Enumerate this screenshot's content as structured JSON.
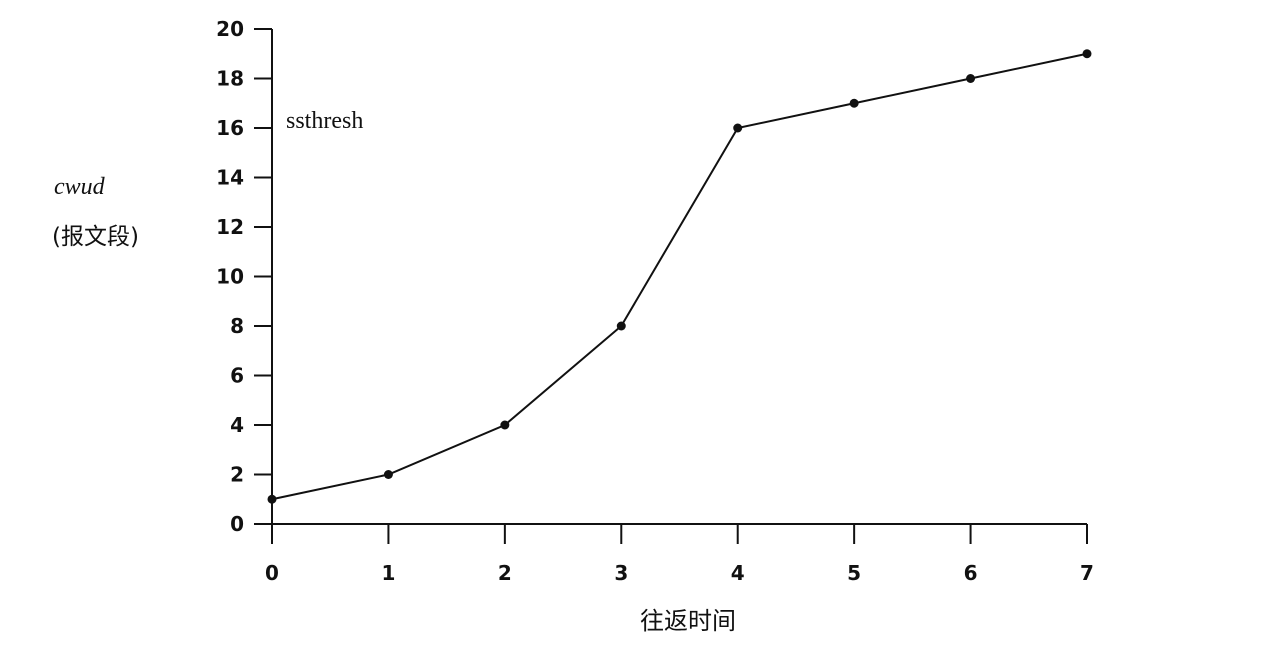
{
  "chart_data": {
    "type": "line",
    "title": "",
    "ylabel_line1": "cwud",
    "ylabel_line2": "(报文段)",
    "xlabel": "往返时间",
    "annotation": "ssthresh",
    "x": [
      0,
      1,
      2,
      3,
      4,
      5,
      6,
      7
    ],
    "y": [
      1,
      2,
      4,
      8,
      16,
      17,
      18,
      19
    ],
    "xlim": [
      0,
      7
    ],
    "ylim": [
      0,
      20
    ],
    "xticks": [
      "0",
      "1",
      "2",
      "3",
      "4",
      "5",
      "6",
      "7"
    ],
    "yticks": [
      "0",
      "2",
      "4",
      "6",
      "8",
      "10",
      "12",
      "14",
      "16",
      "18",
      "20"
    ],
    "grid": false,
    "legend": "none",
    "line_color": "#111111"
  }
}
